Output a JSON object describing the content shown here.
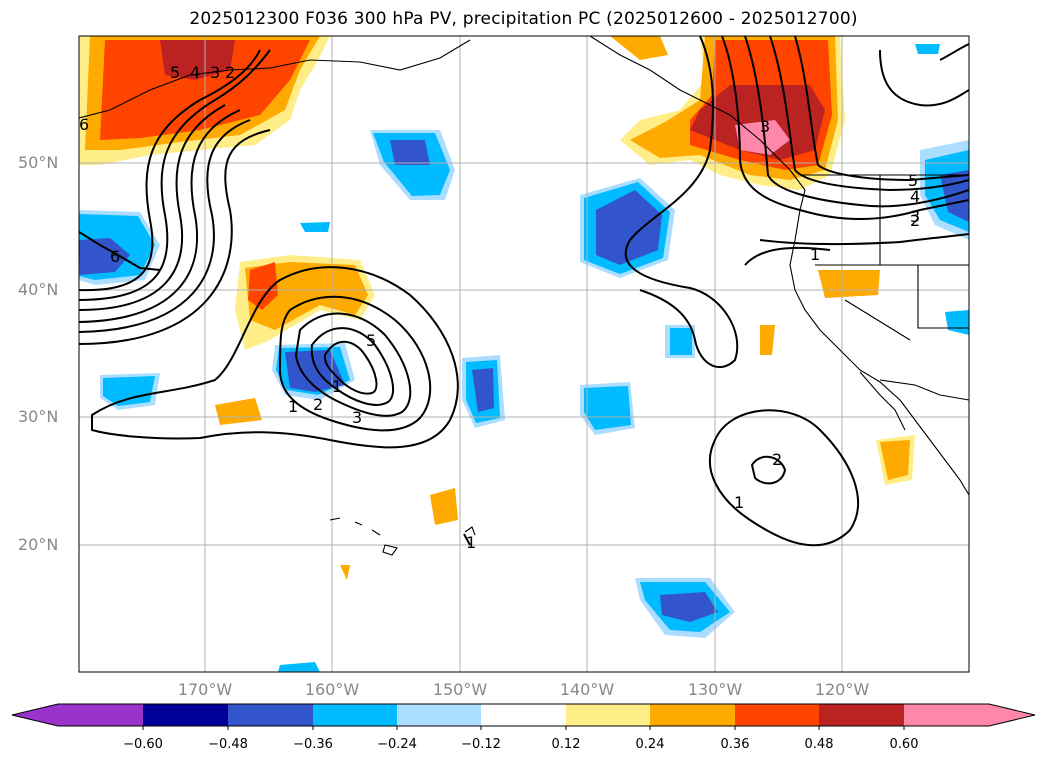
{
  "title": "2025012300 F036 300 hPa PV, precipitation PC (2025012600 - 2025012700)",
  "lat_labels": [
    "50°N",
    "40°N",
    "30°N",
    "20°N"
  ],
  "lon_labels": [
    "170°W",
    "160°W",
    "150°W",
    "140°W",
    "130°W",
    "120°W"
  ],
  "contour_labels": [
    "6",
    "5",
    "4",
    "3",
    "2",
    "1",
    "6",
    "1",
    "2",
    "3",
    "5",
    "3",
    "5",
    "4",
    "3",
    "2",
    "1",
    "2",
    "1",
    "1"
  ],
  "colorbar": {
    "ticks": [
      "−0.60",
      "−0.48",
      "−0.36",
      "−0.24",
      "−0.12",
      "0.12",
      "0.24",
      "0.36",
      "0.48",
      "0.60"
    ],
    "colors": [
      "#9933cc",
      "#000099",
      "#3355cc",
      "#00bbff",
      "#aaddff",
      "#ffffff",
      "#ffee88",
      "#ffaa00",
      "#ff4400",
      "#bb2222",
      "#ff88aa"
    ]
  }
}
